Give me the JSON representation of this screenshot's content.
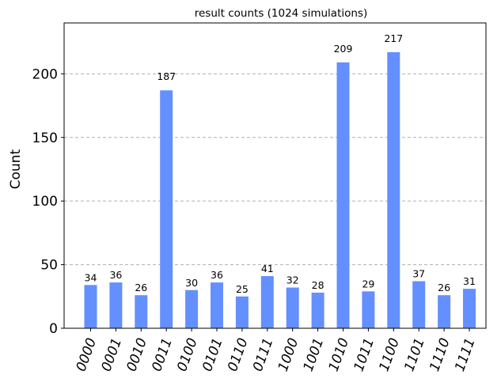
{
  "chart_data": {
    "type": "bar",
    "title": "result counts (1024 simulations)",
    "xlabel": "",
    "ylabel": "Count",
    "categories": [
      "0000",
      "0001",
      "0010",
      "0011",
      "0100",
      "0101",
      "0110",
      "0111",
      "1000",
      "1001",
      "1010",
      "1011",
      "1100",
      "1101",
      "1110",
      "1111"
    ],
    "values": [
      34,
      36,
      26,
      187,
      30,
      36,
      25,
      41,
      32,
      28,
      209,
      29,
      217,
      37,
      26,
      31
    ],
    "ylim": [
      0,
      240
    ],
    "yticks": [
      0,
      50,
      100,
      150,
      200
    ],
    "grid": "horizontal-dashed",
    "bar_color": "#648fff",
    "grid_color": "#b0b0b0",
    "legend": "none"
  }
}
